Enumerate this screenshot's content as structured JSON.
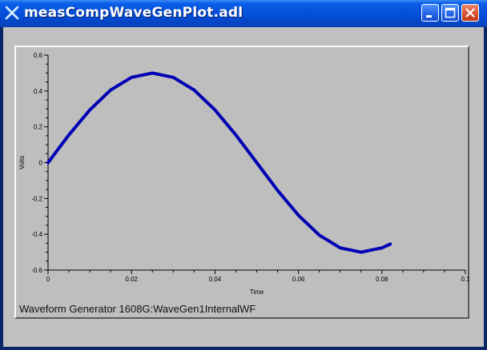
{
  "window": {
    "title": "measCompWaveGenPlot.adl",
    "icon": "x-cross-icon",
    "controls": {
      "minimize": "minimize-icon",
      "maximize": "maximize-icon",
      "close": "close-icon"
    }
  },
  "colors": {
    "trace": "#0000b4",
    "plot_bg": "#bebebe"
  },
  "caption": "Waveform Generator 1608G:WaveGen1InternalWF",
  "chart_data": {
    "type": "line",
    "xlabel": "Time",
    "ylabel": "Volts",
    "xlim": [
      0,
      0.1
    ],
    "ylim": [
      -0.6,
      0.6
    ],
    "x_ticks": [
      "0",
      "0.02",
      "0.04",
      "0.06",
      "0.08",
      "0.1"
    ],
    "x_tick_values": [
      0,
      0.02,
      0.04,
      0.06,
      0.08,
      0.1
    ],
    "y_ticks": [
      "0.6",
      "0.4",
      "0.2",
      "0",
      "-0.2",
      "-0.4",
      "-0.6"
    ],
    "y_tick_values": [
      0.6,
      0.4,
      0.2,
      0,
      -0.2,
      -0.4,
      -0.6
    ],
    "grid": false,
    "legend": "none",
    "series": [
      {
        "x": [
          0,
          0.005,
          0.01,
          0.015,
          0.02,
          0.025,
          0.03,
          0.035,
          0.04,
          0.045,
          0.05,
          0.055,
          0.06,
          0.065,
          0.07,
          0.075,
          0.08,
          0.082
        ],
        "values": [
          0,
          0.155,
          0.294,
          0.405,
          0.476,
          0.5,
          0.476,
          0.405,
          0.294,
          0.155,
          0,
          -0.155,
          -0.294,
          -0.405,
          -0.476,
          -0.5,
          -0.476,
          -0.455
        ]
      }
    ]
  }
}
